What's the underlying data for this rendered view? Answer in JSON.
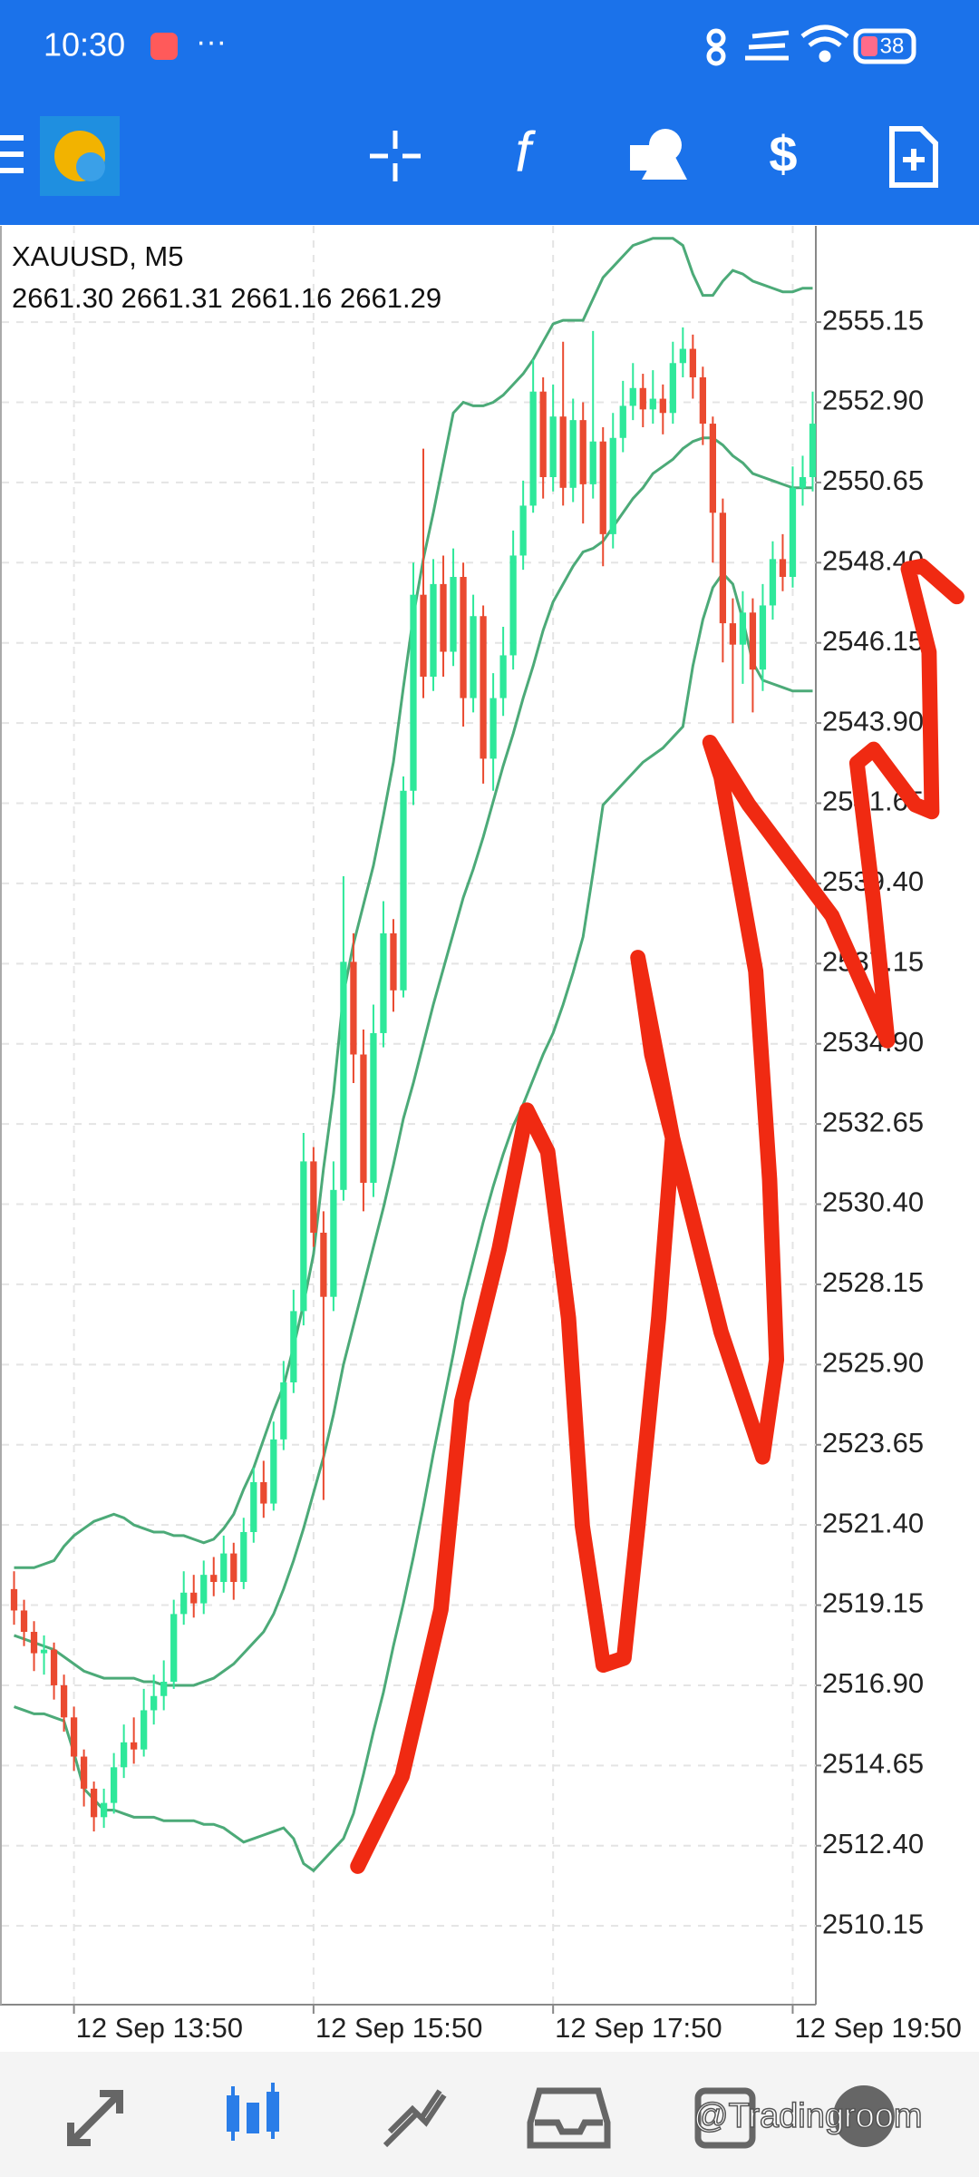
{
  "status_bar": {
    "time": "10:30",
    "battery": "38"
  },
  "watermark": "@Tradingroom",
  "chart_data": {
    "type": "candlestick",
    "title": "XAUUSD, M5",
    "subtitle": "2661.30 2661.31 2661.16 2661.29",
    "categories": [
      null,
      null,
      null,
      null,
      null,
      null,
      "12 Sep 13:50",
      null,
      null,
      null,
      null,
      null,
      null,
      null,
      null,
      null,
      null,
      null,
      null,
      null,
      null,
      null,
      null,
      null,
      null,
      null,
      null,
      null,
      null,
      null,
      "12 Sep 15:50",
      null,
      null,
      null,
      null,
      null,
      null,
      null,
      null,
      null,
      null,
      null,
      null,
      null,
      null,
      null,
      null,
      null,
      null,
      null,
      null,
      null,
      null,
      null,
      "12 Sep 17:50",
      null,
      null,
      null,
      null,
      null,
      null,
      null,
      null,
      null,
      null,
      null,
      null,
      null,
      null,
      null,
      null,
      null,
      null,
      null,
      null,
      null,
      null,
      null,
      "12 Sep 19:50",
      null,
      null
    ],
    "open": [
      2519.6,
      2519.0,
      2518.4,
      2517.8,
      2517.9,
      2516.9,
      2516.0,
      2514.9,
      2514.0,
      2513.2,
      2513.6,
      2514.6,
      2515.3,
      2515.1,
      2516.2,
      2516.6,
      2517.0,
      2518.9,
      2519.5,
      2519.2,
      2520.0,
      2519.8,
      2520.6,
      2519.8,
      2521.2,
      2522.6,
      2522.0,
      2523.8,
      2525.4,
      2527.4,
      2531.6,
      2529.6,
      2527.8,
      2530.8,
      2537.2,
      2534.6,
      2531.0,
      2535.2,
      2538.0,
      2536.4,
      2542.0,
      2547.5,
      2545.2,
      2547.8,
      2545.9,
      2548.0,
      2544.6,
      2546.9,
      2542.9,
      2544.6,
      2545.8,
      2548.6,
      2550.0,
      2553.2,
      2550.8,
      2552.5,
      2550.5,
      2552.4,
      2550.6,
      2551.8,
      2549.2,
      2551.9,
      2552.8,
      2553.3,
      2552.7,
      2553.0,
      2552.6,
      2554.0,
      2554.4,
      2553.6,
      2552.3,
      2549.8,
      2546.7,
      2546.1,
      2547.0,
      2545.4,
      2547.2,
      2548.5,
      2548.0,
      2550.5,
      2550.8
    ],
    "high": [
      2520.1,
      2519.3,
      2518.7,
      2518.3,
      2518.1,
      2517.2,
      2516.3,
      2515.1,
      2514.2,
      2514.0,
      2515.0,
      2515.8,
      2516.0,
      2516.8,
      2517.2,
      2517.6,
      2519.3,
      2520.1,
      2520.0,
      2520.4,
      2520.5,
      2521.1,
      2520.9,
      2521.6,
      2523.0,
      2523.2,
      2524.3,
      2526.0,
      2528.0,
      2532.4,
      2532.0,
      2530.2,
      2531.6,
      2539.6,
      2538.0,
      2535.3,
      2536.0,
      2538.9,
      2538.4,
      2542.4,
      2548.4,
      2551.6,
      2548.5,
      2548.6,
      2548.8,
      2548.4,
      2547.5,
      2547.2,
      2545.3,
      2546.6,
      2549.3,
      2550.7,
      2554.1,
      2553.6,
      2553.4,
      2554.6,
      2553.0,
      2552.9,
      2554.9,
      2552.2,
      2552.6,
      2553.5,
      2554.0,
      2553.7,
      2553.8,
      2553.4,
      2554.6,
      2555.0,
      2554.8,
      2553.9,
      2552.5,
      2550.2,
      2547.4,
      2547.6,
      2547.4,
      2547.8,
      2549.0,
      2549.2,
      2551.1,
      2551.4,
      2553.2
    ],
    "low": [
      2518.6,
      2518.0,
      2517.3,
      2517.2,
      2516.5,
      2515.6,
      2514.5,
      2513.5,
      2512.8,
      2512.9,
      2513.3,
      2514.3,
      2514.7,
      2514.9,
      2515.8,
      2516.2,
      2516.8,
      2518.6,
      2518.8,
      2518.9,
      2519.4,
      2519.5,
      2519.3,
      2519.6,
      2520.9,
      2521.6,
      2521.8,
      2523.5,
      2525.1,
      2527.0,
      2529.2,
      2522.1,
      2527.4,
      2530.5,
      2533.8,
      2530.2,
      2530.6,
      2534.8,
      2535.8,
      2536.2,
      2541.6,
      2544.6,
      2544.8,
      2545.2,
      2545.5,
      2543.8,
      2544.2,
      2542.2,
      2542.0,
      2544.1,
      2545.4,
      2548.2,
      2549.8,
      2550.2,
      2550.4,
      2550.0,
      2550.1,
      2549.5,
      2550.2,
      2548.3,
      2548.8,
      2551.5,
      2552.4,
      2552.2,
      2552.3,
      2552.0,
      2552.3,
      2553.6,
      2553.0,
      2551.7,
      2548.4,
      2545.6,
      2543.9,
      2545.0,
      2544.2,
      2544.8,
      2546.8,
      2547.6,
      2547.7,
      2550.0,
      2550.4
    ],
    "close": [
      2519.0,
      2518.4,
      2517.8,
      2517.9,
      2516.9,
      2516.0,
      2514.9,
      2514.0,
      2513.2,
      2513.6,
      2514.6,
      2515.3,
      2515.1,
      2516.2,
      2516.6,
      2517.0,
      2518.9,
      2519.5,
      2519.2,
      2520.0,
      2519.8,
      2520.6,
      2519.8,
      2521.2,
      2522.6,
      2522.0,
      2523.8,
      2525.4,
      2527.4,
      2531.6,
      2529.6,
      2527.8,
      2530.8,
      2537.2,
      2534.6,
      2531.0,
      2535.2,
      2538.0,
      2536.4,
      2542.0,
      2547.5,
      2545.2,
      2547.8,
      2545.9,
      2548.0,
      2544.6,
      2546.9,
      2542.9,
      2544.6,
      2545.8,
      2548.6,
      2550.0,
      2553.2,
      2550.8,
      2552.5,
      2550.5,
      2552.4,
      2550.6,
      2551.8,
      2549.2,
      2551.9,
      2552.8,
      2553.3,
      2552.7,
      2553.0,
      2552.6,
      2554.0,
      2554.4,
      2553.6,
      2552.3,
      2549.8,
      2546.7,
      2546.1,
      2547.0,
      2545.4,
      2547.2,
      2548.5,
      2548.0,
      2550.5,
      2550.8,
      2552.3
    ],
    "up_color": "#2ee89a",
    "down_color": "#ea4a30",
    "overlays": [
      {
        "color": "#4caa78",
        "values": [
          2520.2,
          2520.2,
          2520.2,
          2520.3,
          2520.4,
          2520.8,
          2521.1,
          2521.3,
          2521.5,
          2521.6,
          2521.7,
          2521.6,
          2521.4,
          2521.3,
          2521.2,
          2521.2,
          2521.1,
          2521.1,
          2521.0,
          2520.9,
          2521.0,
          2521.3,
          2521.7,
          2522.4,
          2523.0,
          2523.8,
          2524.6,
          2525.3,
          2526.4,
          2527.6,
          2529.0,
          2531.4,
          2533.5,
          2536.3,
          2537.7,
          2538.8,
          2539.9,
          2541.3,
          2542.8,
          2544.9,
          2546.9,
          2548.5,
          2549.8,
          2551.2,
          2552.6,
          2552.9,
          2552.8,
          2552.8,
          2552.9,
          2553.1,
          2553.4,
          2553.7,
          2554.1,
          2554.6,
          2555.1,
          2555.2,
          2555.2,
          2555.2,
          2555.8,
          2556.4,
          2556.7,
          2557.0,
          2557.3,
          2557.4,
          2557.5,
          2557.5,
          2557.5,
          2557.3,
          2556.5,
          2555.9,
          2555.9,
          2556.3,
          2556.6,
          2556.5,
          2556.3,
          2556.2,
          2556.1,
          2556.0,
          2556.0,
          2556.1,
          2556.1
        ]
      },
      {
        "color": "#4caa78",
        "values": [
          2518.3,
          2518.2,
          2518.1,
          2518.0,
          2517.9,
          2517.7,
          2517.5,
          2517.3,
          2517.2,
          2517.1,
          2517.1,
          2517.1,
          2517.1,
          2517.0,
          2517.0,
          2516.9,
          2516.9,
          2516.9,
          2516.9,
          2517.0,
          2517.1,
          2517.3,
          2517.5,
          2517.8,
          2518.1,
          2518.4,
          2518.9,
          2519.6,
          2520.4,
          2521.3,
          2522.3,
          2523.3,
          2524.5,
          2525.9,
          2527.0,
          2528.1,
          2529.2,
          2530.3,
          2531.5,
          2532.8,
          2533.8,
          2534.9,
          2536.0,
          2537.0,
          2538.0,
          2539.0,
          2539.8,
          2540.7,
          2541.7,
          2542.7,
          2543.6,
          2544.6,
          2545.5,
          2546.5,
          2547.3,
          2547.8,
          2548.3,
          2548.7,
          2548.8,
          2549.0,
          2549.4,
          2549.8,
          2550.2,
          2550.5,
          2550.9,
          2551.1,
          2551.3,
          2551.6,
          2551.8,
          2551.9,
          2551.9,
          2551.7,
          2551.4,
          2551.2,
          2550.9,
          2550.8,
          2550.7,
          2550.6,
          2550.5,
          2550.5,
          2550.5
        ]
      },
      {
        "color": "#4caa78",
        "values": [
          2516.3,
          2516.2,
          2516.1,
          2516.1,
          2516.0,
          2515.9,
          2515.0,
          2514.0,
          2513.7,
          2513.4,
          2513.4,
          2513.3,
          2513.2,
          2513.2,
          2513.2,
          2513.1,
          2513.1,
          2513.1,
          2513.1,
          2513.0,
          2513.0,
          2512.9,
          2512.7,
          2512.5,
          2512.6,
          2512.7,
          2512.8,
          2512.9,
          2512.6,
          2511.9,
          2511.7,
          2512.0,
          2512.3,
          2512.6,
          2513.3,
          2514.4,
          2515.6,
          2516.7,
          2518.0,
          2519.2,
          2520.5,
          2521.9,
          2523.4,
          2524.8,
          2526.2,
          2527.7,
          2528.8,
          2529.9,
          2530.9,
          2531.8,
          2532.6,
          2533.2,
          2533.9,
          2534.6,
          2535.2,
          2536.0,
          2536.9,
          2537.9,
          2539.7,
          2541.6,
          2541.9,
          2542.2,
          2542.5,
          2542.8,
          2543.0,
          2543.2,
          2543.5,
          2543.8,
          2545.5,
          2546.8,
          2547.7,
          2548.1,
          2547.8,
          2546.8,
          2545.6,
          2545.1,
          2545.0,
          2544.9,
          2544.8,
          2544.8,
          2544.8
        ]
      }
    ],
    "ylim": [
      2507.94,
      2557.85
    ],
    "yticks": [
      {
        "value": 2510.15,
        "label": "2510.15"
      },
      {
        "value": 2512.4,
        "label": "2512.40"
      },
      {
        "value": 2514.65,
        "label": "2514.65"
      },
      {
        "value": 2516.9,
        "label": "2516.90"
      },
      {
        "value": 2519.15,
        "label": "2519.15"
      },
      {
        "value": 2521.4,
        "label": "2521.40"
      },
      {
        "value": 2523.65,
        "label": "2523.65"
      },
      {
        "value": 2525.9,
        "label": "2525.90"
      },
      {
        "value": 2528.15,
        "label": "2528.15"
      },
      {
        "value": 2530.4,
        "label": "2530.40"
      },
      {
        "value": 2532.65,
        "label": "2532.65"
      },
      {
        "value": 2534.9,
        "label": "2534.90"
      },
      {
        "value": 2537.15,
        "label": "2537.15"
      },
      {
        "value": 2539.4,
        "label": "2539.40"
      },
      {
        "value": 2541.65,
        "label": "2541.65"
      },
      {
        "value": 2543.9,
        "label": "2543.90"
      },
      {
        "value": 2546.15,
        "label": "2546.15"
      },
      {
        "value": 2548.4,
        "label": "2548.40"
      },
      {
        "value": 2550.65,
        "label": "2550.65"
      },
      {
        "value": 2552.9,
        "label": "2552.90"
      },
      {
        "value": 2555.15,
        "label": "2555.15"
      }
    ],
    "grid": true
  }
}
